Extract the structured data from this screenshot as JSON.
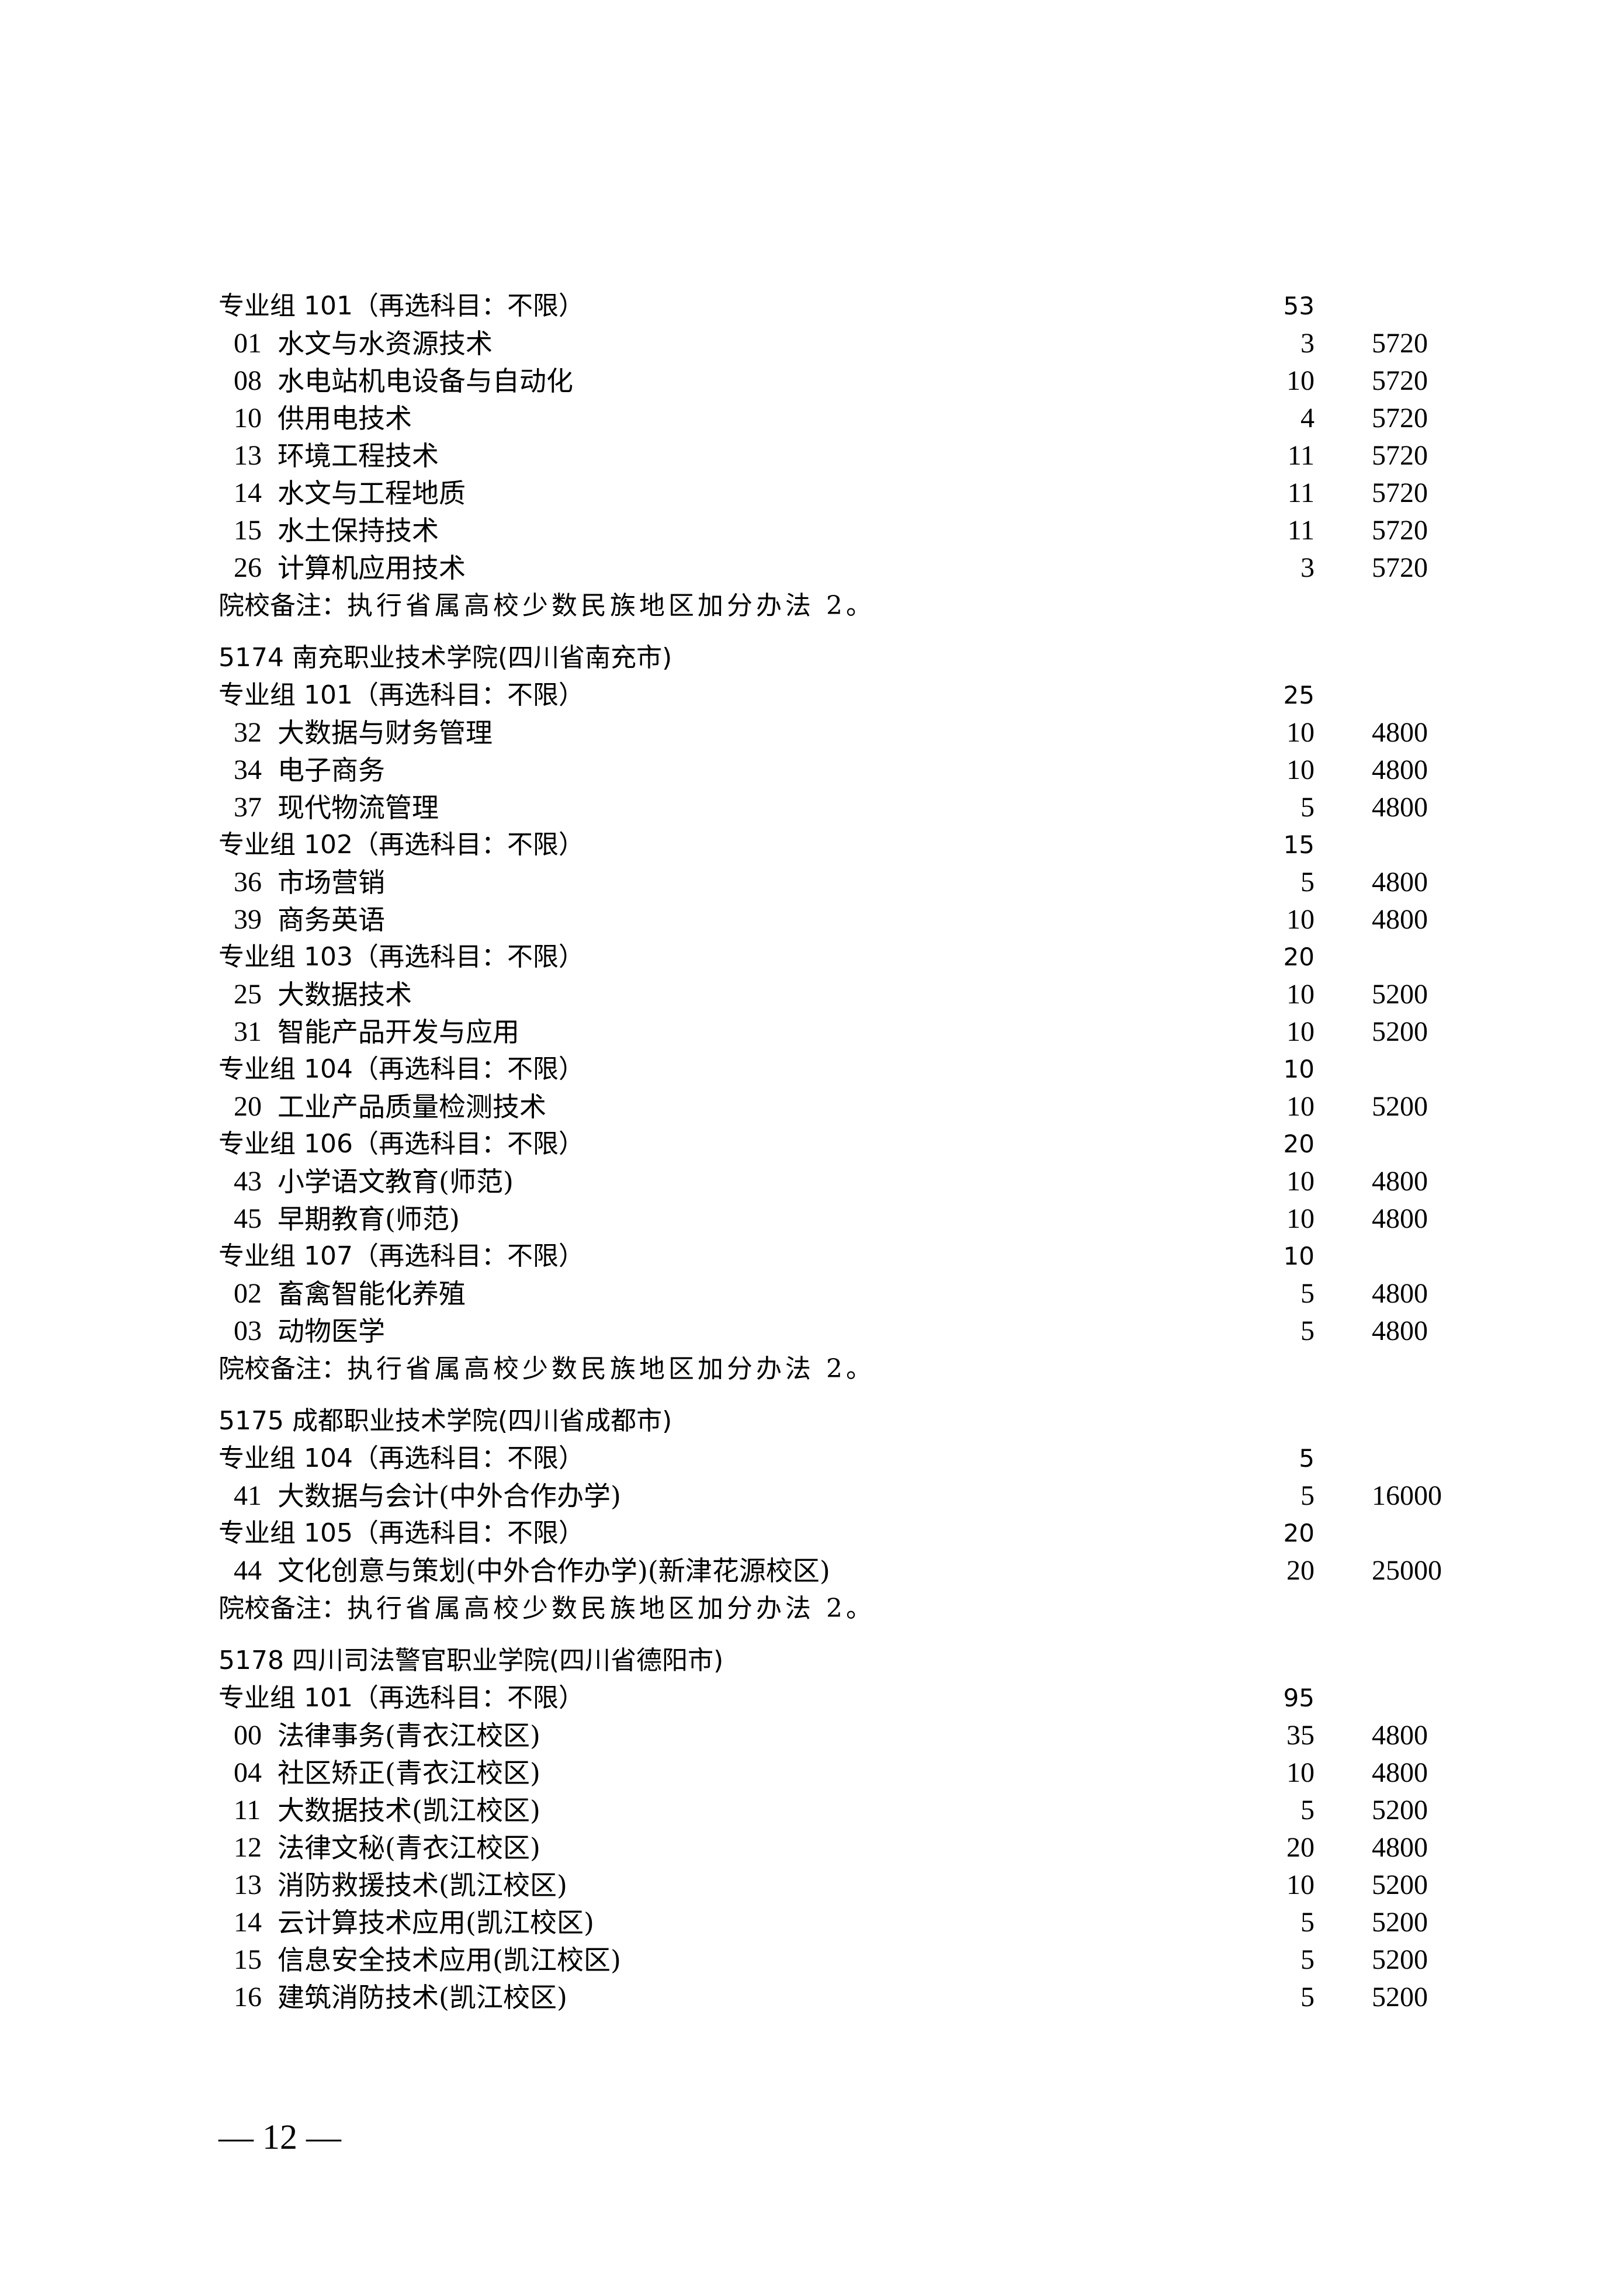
{
  "rows": [
    {
      "type": "group",
      "label": "专业组 101（再选科目：不限）",
      "count": "53"
    },
    {
      "type": "major",
      "code": "01",
      "name": "水文与水资源技术",
      "count": "3",
      "fee": "5720"
    },
    {
      "type": "major",
      "code": "08",
      "name": "水电站机电设备与自动化",
      "count": "10",
      "fee": "5720"
    },
    {
      "type": "major",
      "code": "10",
      "name": "供用电技术",
      "count": "4",
      "fee": "5720"
    },
    {
      "type": "major",
      "code": "13",
      "name": "环境工程技术",
      "count": "11",
      "fee": "5720"
    },
    {
      "type": "major",
      "code": "14",
      "name": "水文与工程地质",
      "count": "11",
      "fee": "5720"
    },
    {
      "type": "major",
      "code": "15",
      "name": "水土保持技术",
      "count": "11",
      "fee": "5720"
    },
    {
      "type": "major",
      "code": "26",
      "name": "计算机应用技术",
      "count": "3",
      "fee": "5720"
    },
    {
      "type": "note",
      "label": "院校备注：",
      "text": "执行省属高校少数民族地区加分办法 2。"
    },
    {
      "type": "school",
      "label": "5174  南充职业技术学院(四川省南充市)"
    },
    {
      "type": "group",
      "label": "专业组 101（再选科目：不限）",
      "count": "25"
    },
    {
      "type": "major",
      "code": "32",
      "name": "大数据与财务管理",
      "count": "10",
      "fee": "4800"
    },
    {
      "type": "major",
      "code": "34",
      "name": "电子商务",
      "count": "10",
      "fee": "4800"
    },
    {
      "type": "major",
      "code": "37",
      "name": "现代物流管理",
      "count": "5",
      "fee": "4800"
    },
    {
      "type": "group",
      "label": "专业组 102（再选科目：不限）",
      "count": "15"
    },
    {
      "type": "major",
      "code": "36",
      "name": "市场营销",
      "count": "5",
      "fee": "4800"
    },
    {
      "type": "major",
      "code": "39",
      "name": "商务英语",
      "count": "10",
      "fee": "4800"
    },
    {
      "type": "group",
      "label": "专业组 103（再选科目：不限）",
      "count": "20"
    },
    {
      "type": "major",
      "code": "25",
      "name": "大数据技术",
      "count": "10",
      "fee": "5200"
    },
    {
      "type": "major",
      "code": "31",
      "name": "智能产品开发与应用",
      "count": "10",
      "fee": "5200"
    },
    {
      "type": "group",
      "label": "专业组 104（再选科目：不限）",
      "count": "10"
    },
    {
      "type": "major",
      "code": "20",
      "name": "工业产品质量检测技术",
      "count": "10",
      "fee": "5200"
    },
    {
      "type": "group",
      "label": "专业组 106（再选科目：不限）",
      "count": "20"
    },
    {
      "type": "major",
      "code": "43",
      "name": "小学语文教育(师范)",
      "count": "10",
      "fee": "4800"
    },
    {
      "type": "major",
      "code": "45",
      "name": "早期教育(师范)",
      "count": "10",
      "fee": "4800"
    },
    {
      "type": "group",
      "label": "专业组 107（再选科目：不限）",
      "count": "10"
    },
    {
      "type": "major",
      "code": "02",
      "name": "畜禽智能化养殖",
      "count": "5",
      "fee": "4800"
    },
    {
      "type": "major",
      "code": "03",
      "name": "动物医学",
      "count": "5",
      "fee": "4800"
    },
    {
      "type": "note",
      "label": "院校备注：",
      "text": "执行省属高校少数民族地区加分办法 2。"
    },
    {
      "type": "school",
      "label": "5175  成都职业技术学院(四川省成都市)"
    },
    {
      "type": "group",
      "label": "专业组 104（再选科目：不限）",
      "count": "5"
    },
    {
      "type": "major",
      "code": "41",
      "name": "大数据与会计(中外合作办学)",
      "count": "5",
      "fee": "16000"
    },
    {
      "type": "group",
      "label": "专业组 105（再选科目：不限）",
      "count": "20"
    },
    {
      "type": "major",
      "code": "44",
      "name": "文化创意与策划(中外合作办学)(新津花源校区)",
      "count": "20",
      "fee": "25000"
    },
    {
      "type": "note",
      "label": "院校备注：",
      "text": "执行省属高校少数民族地区加分办法 2。"
    },
    {
      "type": "school",
      "label": "5178  四川司法警官职业学院(四川省德阳市)"
    },
    {
      "type": "group",
      "label": "专业组 101（再选科目：不限）",
      "count": "95"
    },
    {
      "type": "major",
      "code": "00",
      "name": "法律事务(青衣江校区)",
      "count": "35",
      "fee": "4800"
    },
    {
      "type": "major",
      "code": "04",
      "name": "社区矫正(青衣江校区)",
      "count": "10",
      "fee": "4800"
    },
    {
      "type": "major",
      "code": "11",
      "name": "大数据技术(凯江校区)",
      "count": "5",
      "fee": "5200"
    },
    {
      "type": "major",
      "code": "12",
      "name": "法律文秘(青衣江校区)",
      "count": "20",
      "fee": "4800"
    },
    {
      "type": "major",
      "code": "13",
      "name": "消防救援技术(凯江校区)",
      "count": "10",
      "fee": "5200"
    },
    {
      "type": "major",
      "code": "14",
      "name": "云计算技术应用(凯江校区)",
      "count": "5",
      "fee": "5200"
    },
    {
      "type": "major",
      "code": "15",
      "name": "信息安全技术应用(凯江校区)",
      "count": "5",
      "fee": "5200"
    },
    {
      "type": "major",
      "code": "16",
      "name": "建筑消防技术(凯江校区)",
      "count": "5",
      "fee": "5200"
    }
  ],
  "page_number": "— 12 —"
}
